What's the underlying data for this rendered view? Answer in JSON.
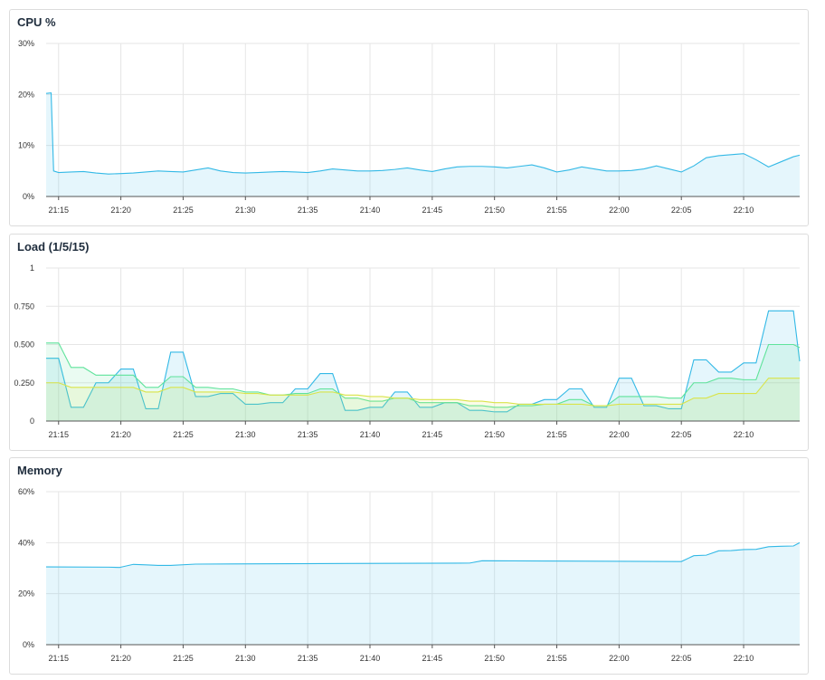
{
  "colors": {
    "grid": "#e6e6e6",
    "axis": "#555555",
    "cpu": "#33b9e6",
    "load1": "#33b9e6",
    "load5": "#5fe39b",
    "load15": "#d9e44a",
    "memory": "#33b9e6"
  },
  "chart_data": [
    {
      "type": "area",
      "title": "CPU %",
      "y_ticks": [
        "30%",
        "20%",
        "10%",
        "0%"
      ],
      "ylim": [
        0,
        30
      ],
      "x_ticks": [
        "21:15",
        "21:20",
        "21:25",
        "21:30",
        "21:35",
        "21:40",
        "21:45",
        "21:50",
        "21:55",
        "22:00",
        "22:05",
        "22:10"
      ],
      "xlim": [
        "21:14",
        "22:14.5"
      ],
      "grid": true,
      "series": [
        {
          "x": [
            "21:14",
            "21:14.4",
            "21:14.6",
            "21:15",
            "21:16",
            "21:17",
            "21:18",
            "21:19",
            "21:20",
            "21:21",
            "21:22",
            "21:23",
            "21:24",
            "21:25",
            "21:26",
            "21:27",
            "21:28",
            "21:29",
            "21:30",
            "21:31",
            "21:32",
            "21:33",
            "21:34",
            "21:35",
            "21:36",
            "21:37",
            "21:38",
            "21:39",
            "21:40",
            "21:41",
            "21:42",
            "21:43",
            "21:44",
            "21:45",
            "21:46",
            "21:47",
            "21:48",
            "21:49",
            "21:50",
            "21:51",
            "21:52",
            "21:53",
            "21:54",
            "21:55",
            "21:56",
            "21:57",
            "21:58",
            "21:59",
            "22:00",
            "22:01",
            "22:02",
            "22:03",
            "22:04",
            "22:05",
            "22:06",
            "22:07",
            "22:08",
            "22:09",
            "22:10",
            "22:11",
            "22:12",
            "22:13",
            "22:14",
            "22:14.5"
          ],
          "values": [
            20.2,
            20.3,
            5.0,
            4.7,
            4.8,
            4.9,
            4.6,
            4.4,
            4.5,
            4.6,
            4.8,
            5.0,
            4.9,
            4.8,
            5.2,
            5.6,
            5.0,
            4.7,
            4.6,
            4.7,
            4.8,
            4.9,
            4.8,
            4.7,
            5.0,
            5.4,
            5.2,
            5.0,
            5.0,
            5.1,
            5.3,
            5.6,
            5.2,
            4.9,
            5.4,
            5.8,
            5.9,
            5.9,
            5.8,
            5.6,
            5.9,
            6.2,
            5.6,
            4.8,
            5.2,
            5.8,
            5.4,
            5.0,
            5.0,
            5.1,
            5.4,
            6.0,
            5.4,
            4.8,
            6.0,
            7.6,
            8.0,
            8.2,
            8.4,
            7.2,
            5.8,
            6.8,
            7.8,
            8.1
          ]
        }
      ]
    },
    {
      "type": "area",
      "title": "Load (1/5/15)",
      "y_ticks": [
        "1",
        "0.750",
        "0.500",
        "0.250",
        "0"
      ],
      "ylim": [
        0,
        1
      ],
      "x_ticks": [
        "21:15",
        "21:20",
        "21:25",
        "21:30",
        "21:35",
        "21:40",
        "21:45",
        "21:50",
        "21:55",
        "22:00",
        "22:05",
        "22:10"
      ],
      "xlim": [
        "21:14",
        "22:14.5"
      ],
      "grid": true,
      "series": [
        {
          "x": [
            "21:14",
            "21:15",
            "21:16",
            "21:17",
            "21:18",
            "21:19",
            "21:20",
            "21:21",
            "21:22",
            "21:23",
            "21:24",
            "21:25",
            "21:26",
            "21:27",
            "21:28",
            "21:29",
            "21:30",
            "21:31",
            "21:32",
            "21:33",
            "21:34",
            "21:35",
            "21:36",
            "21:37",
            "21:38",
            "21:39",
            "21:40",
            "21:41",
            "21:42",
            "21:43",
            "21:44",
            "21:45",
            "21:46",
            "21:47",
            "21:48",
            "21:49",
            "21:50",
            "21:51",
            "21:52",
            "21:53",
            "21:54",
            "21:55",
            "21:56",
            "21:57",
            "21:58",
            "21:59",
            "22:00",
            "22:01",
            "22:02",
            "22:03",
            "22:04",
            "22:05",
            "22:06",
            "22:07",
            "22:08",
            "22:09",
            "22:10",
            "22:11",
            "22:12",
            "22:13",
            "22:14",
            "22:14.5"
          ],
          "values": [
            0.41,
            0.41,
            0.09,
            0.09,
            0.25,
            0.25,
            0.34,
            0.34,
            0.08,
            0.08,
            0.45,
            0.45,
            0.16,
            0.16,
            0.18,
            0.18,
            0.11,
            0.11,
            0.12,
            0.12,
            0.21,
            0.21,
            0.31,
            0.31,
            0.07,
            0.07,
            0.09,
            0.09,
            0.19,
            0.19,
            0.09,
            0.09,
            0.12,
            0.12,
            0.07,
            0.07,
            0.06,
            0.06,
            0.11,
            0.11,
            0.14,
            0.14,
            0.21,
            0.21,
            0.09,
            0.09,
            0.28,
            0.28,
            0.1,
            0.1,
            0.08,
            0.08,
            0.4,
            0.4,
            0.32,
            0.32,
            0.38,
            0.38,
            0.72,
            0.72,
            0.72,
            0.39
          ]
        },
        {
          "x": [
            "21:14",
            "21:15",
            "21:16",
            "21:17",
            "21:18",
            "21:19",
            "21:20",
            "21:21",
            "21:22",
            "21:23",
            "21:24",
            "21:25",
            "21:26",
            "21:27",
            "21:28",
            "21:29",
            "21:30",
            "21:31",
            "21:32",
            "21:33",
            "21:34",
            "21:35",
            "21:36",
            "21:37",
            "21:38",
            "21:39",
            "21:40",
            "21:41",
            "21:42",
            "21:43",
            "21:44",
            "21:45",
            "21:46",
            "21:47",
            "21:48",
            "21:49",
            "21:50",
            "21:51",
            "21:52",
            "21:53",
            "21:54",
            "21:55",
            "21:56",
            "21:57",
            "21:58",
            "21:59",
            "22:00",
            "22:01",
            "22:02",
            "22:03",
            "22:04",
            "22:05",
            "22:06",
            "22:07",
            "22:08",
            "22:09",
            "22:10",
            "22:11",
            "22:12",
            "22:13",
            "22:14",
            "22:14.5"
          ],
          "values": [
            0.51,
            0.51,
            0.35,
            0.35,
            0.3,
            0.3,
            0.3,
            0.3,
            0.22,
            0.22,
            0.29,
            0.29,
            0.22,
            0.22,
            0.21,
            0.21,
            0.19,
            0.19,
            0.17,
            0.17,
            0.18,
            0.18,
            0.21,
            0.21,
            0.15,
            0.15,
            0.13,
            0.13,
            0.15,
            0.15,
            0.12,
            0.12,
            0.12,
            0.12,
            0.1,
            0.1,
            0.09,
            0.09,
            0.1,
            0.1,
            0.11,
            0.11,
            0.14,
            0.14,
            0.1,
            0.1,
            0.16,
            0.16,
            0.16,
            0.16,
            0.15,
            0.15,
            0.25,
            0.25,
            0.28,
            0.28,
            0.27,
            0.27,
            0.5,
            0.5,
            0.5,
            0.48
          ]
        },
        {
          "x": [
            "21:14",
            "21:15",
            "21:16",
            "21:17",
            "21:18",
            "21:19",
            "21:20",
            "21:21",
            "21:22",
            "21:23",
            "21:24",
            "21:25",
            "21:26",
            "21:27",
            "21:28",
            "21:29",
            "21:30",
            "21:31",
            "21:32",
            "21:33",
            "21:34",
            "21:35",
            "21:36",
            "21:37",
            "21:38",
            "21:39",
            "21:40",
            "21:41",
            "21:42",
            "21:43",
            "21:44",
            "21:45",
            "21:46",
            "21:47",
            "21:48",
            "21:49",
            "21:50",
            "21:51",
            "21:52",
            "21:53",
            "21:54",
            "21:55",
            "21:56",
            "21:57",
            "21:58",
            "21:59",
            "22:00",
            "22:01",
            "22:02",
            "22:03",
            "22:04",
            "22:05",
            "22:06",
            "22:07",
            "22:08",
            "22:09",
            "22:10",
            "22:11",
            "22:12",
            "22:13",
            "22:14",
            "22:14.5"
          ],
          "values": [
            0.25,
            0.25,
            0.22,
            0.22,
            0.22,
            0.22,
            0.22,
            0.22,
            0.19,
            0.19,
            0.22,
            0.22,
            0.19,
            0.19,
            0.19,
            0.19,
            0.18,
            0.18,
            0.17,
            0.17,
            0.17,
            0.17,
            0.19,
            0.19,
            0.17,
            0.17,
            0.16,
            0.16,
            0.15,
            0.15,
            0.14,
            0.14,
            0.14,
            0.14,
            0.13,
            0.13,
            0.12,
            0.12,
            0.11,
            0.11,
            0.11,
            0.11,
            0.11,
            0.11,
            0.1,
            0.1,
            0.11,
            0.11,
            0.11,
            0.11,
            0.11,
            0.11,
            0.15,
            0.15,
            0.18,
            0.18,
            0.18,
            0.18,
            0.28,
            0.28,
            0.28,
            0.28
          ]
        }
      ]
    },
    {
      "type": "area",
      "title": "Memory",
      "y_ticks": [
        "60%",
        "40%",
        "20%",
        "0%"
      ],
      "ylim": [
        0,
        60
      ],
      "x_ticks": [
        "21:15",
        "21:20",
        "21:25",
        "21:30",
        "21:35",
        "21:40",
        "21:45",
        "21:50",
        "21:55",
        "22:00",
        "22:05",
        "22:10"
      ],
      "xlim": [
        "21:14",
        "22:14.5"
      ],
      "grid": true,
      "series": [
        {
          "x": [
            "21:14",
            "21:19",
            "21:19.9",
            "21:20",
            "21:21",
            "21:22",
            "21:23",
            "21:24",
            "21:26",
            "21:36",
            "21:48",
            "21:49",
            "22:05",
            "22:06",
            "22:07",
            "22:08",
            "22:09",
            "22:10",
            "22:11",
            "22:12",
            "22:13",
            "22:14",
            "22:14.5"
          ],
          "values": [
            30.5,
            30.4,
            30.3,
            30.4,
            31.5,
            31.3,
            31.1,
            31.1,
            31.6,
            31.8,
            32.0,
            32.9,
            32.6,
            34.9,
            35.1,
            36.8,
            36.9,
            37.3,
            37.4,
            38.4,
            38.6,
            38.7,
            40.0
          ]
        }
      ]
    }
  ]
}
